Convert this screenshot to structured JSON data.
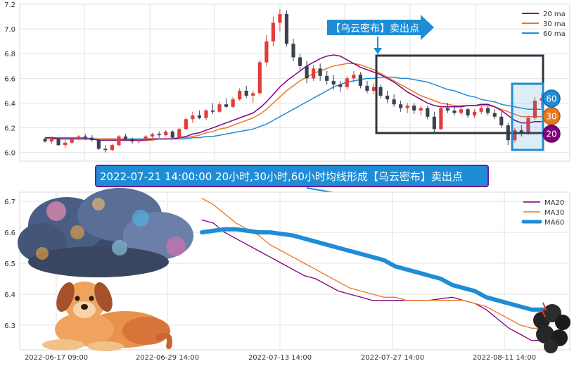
{
  "colors": {
    "ma20": "#800080",
    "ma30": "#e87722",
    "ma60": "#1f8dd6",
    "up": "#e23b3b",
    "down": "#3a4252",
    "box": "#2f3640",
    "blue_box": "#1f8dd6",
    "banner_bg": "#1f8dd6",
    "banner_border": "#6a1b9a"
  },
  "callout": {
    "text": "【乌云密布】卖出点"
  },
  "banner": {
    "text": "2022-07-21 14:00:00 20小时,30小时,60小时均线形成【乌云密布】卖出点"
  },
  "badges": {
    "ma60": "60",
    "ma30": "30",
    "ma20": "20"
  },
  "images": {
    "cloud": "storm-cloud-illustration",
    "dog": "dog-illustration",
    "small_cloud": "dark-cloud-illustration"
  },
  "chart_data": [
    {
      "type": "candlestick",
      "title": "",
      "ylim": [
        5.93,
        7.2
      ],
      "yticks": [
        "6.0",
        "6.2",
        "6.4",
        "6.6",
        "6.8",
        "7.0",
        "7.2"
      ],
      "ytick_values": [
        6.0,
        6.2,
        6.4,
        6.6,
        6.8,
        7.0,
        7.2
      ],
      "grid": true,
      "legend": {
        "position": "top-right",
        "entries": [
          "20 ma",
          "30 ma",
          "60 ma"
        ]
      },
      "ohlc": [
        [
          6.11,
          6.12,
          6.08,
          6.09
        ],
        [
          6.09,
          6.13,
          6.07,
          6.11
        ],
        [
          6.11,
          6.12,
          6.05,
          6.06
        ],
        [
          6.06,
          6.1,
          6.04,
          6.08
        ],
        [
          6.08,
          6.12,
          6.07,
          6.11
        ],
        [
          6.11,
          6.14,
          6.1,
          6.13
        ],
        [
          6.13,
          6.15,
          6.1,
          6.12
        ],
        [
          6.12,
          6.14,
          6.09,
          6.1
        ],
        [
          6.1,
          6.11,
          6.02,
          6.03
        ],
        [
          6.03,
          6.06,
          6.0,
          6.02
        ],
        [
          6.02,
          6.07,
          6.01,
          6.06
        ],
        [
          6.06,
          6.14,
          6.05,
          6.13
        ],
        [
          6.13,
          6.15,
          6.1,
          6.11
        ],
        [
          6.11,
          6.12,
          6.07,
          6.09
        ],
        [
          6.09,
          6.11,
          6.07,
          6.1
        ],
        [
          6.1,
          6.14,
          6.09,
          6.13
        ],
        [
          6.13,
          6.16,
          6.11,
          6.15
        ],
        [
          6.15,
          6.17,
          6.12,
          6.14
        ],
        [
          6.14,
          6.18,
          6.13,
          6.17
        ],
        [
          6.17,
          6.18,
          6.11,
          6.12
        ],
        [
          6.12,
          6.2,
          6.11,
          6.19
        ],
        [
          6.19,
          6.28,
          6.18,
          6.27
        ],
        [
          6.27,
          6.33,
          6.24,
          6.3
        ],
        [
          6.3,
          6.34,
          6.27,
          6.28
        ],
        [
          6.28,
          6.35,
          6.26,
          6.34
        ],
        [
          6.34,
          6.4,
          6.31,
          6.33
        ],
        [
          6.33,
          6.41,
          6.32,
          6.39
        ],
        [
          6.39,
          6.44,
          6.36,
          6.37
        ],
        [
          6.37,
          6.45,
          6.36,
          6.43
        ],
        [
          6.43,
          6.52,
          6.42,
          6.5
        ],
        [
          6.5,
          6.54,
          6.44,
          6.46
        ],
        [
          6.46,
          6.5,
          6.4,
          6.48
        ],
        [
          6.48,
          6.75,
          6.47,
          6.73
        ],
        [
          6.73,
          6.95,
          6.7,
          6.9
        ],
        [
          6.9,
          7.1,
          6.86,
          7.05
        ],
        [
          7.05,
          7.16,
          6.98,
          7.12
        ],
        [
          7.12,
          7.15,
          6.86,
          6.88
        ],
        [
          6.88,
          6.92,
          6.74,
          6.77
        ],
        [
          6.77,
          6.8,
          6.66,
          6.7
        ],
        [
          6.7,
          6.74,
          6.56,
          6.6
        ],
        [
          6.6,
          6.71,
          6.58,
          6.68
        ],
        [
          6.68,
          6.72,
          6.58,
          6.62
        ],
        [
          6.62,
          6.66,
          6.55,
          6.58
        ],
        [
          6.58,
          6.63,
          6.51,
          6.55
        ],
        [
          6.55,
          6.58,
          6.49,
          6.53
        ],
        [
          6.53,
          6.62,
          6.51,
          6.6
        ],
        [
          6.6,
          6.66,
          6.57,
          6.63
        ],
        [
          6.63,
          6.65,
          6.52,
          6.54
        ],
        [
          6.54,
          6.58,
          6.48,
          6.5
        ],
        [
          6.5,
          6.56,
          6.47,
          6.53
        ],
        [
          6.53,
          6.55,
          6.44,
          6.46
        ],
        [
          6.46,
          6.5,
          6.4,
          6.43
        ],
        [
          6.43,
          6.47,
          6.37,
          6.39
        ],
        [
          6.39,
          6.42,
          6.33,
          6.36
        ],
        [
          6.36,
          6.4,
          6.32,
          6.38
        ],
        [
          6.38,
          6.4,
          6.31,
          6.34
        ],
        [
          6.34,
          6.38,
          6.3,
          6.36
        ],
        [
          6.36,
          6.38,
          6.27,
          6.29
        ],
        [
          6.29,
          6.33,
          6.16,
          6.19
        ],
        [
          6.19,
          6.38,
          6.18,
          6.36
        ],
        [
          6.36,
          6.4,
          6.32,
          6.34
        ],
        [
          6.34,
          6.38,
          6.3,
          6.32
        ],
        [
          6.32,
          6.37,
          6.3,
          6.35
        ],
        [
          6.35,
          6.36,
          6.28,
          6.3
        ],
        [
          6.3,
          6.35,
          6.28,
          6.33
        ],
        [
          6.33,
          6.38,
          6.31,
          6.36
        ],
        [
          6.36,
          6.38,
          6.3,
          6.32
        ],
        [
          6.32,
          6.35,
          6.27,
          6.29
        ],
        [
          6.29,
          6.33,
          6.2,
          6.22
        ],
        [
          6.22,
          6.24,
          6.06,
          6.1
        ],
        [
          6.1,
          6.2,
          6.08,
          6.18
        ],
        [
          6.18,
          6.22,
          6.13,
          6.15
        ],
        [
          6.15,
          6.3,
          6.14,
          6.28
        ],
        [
          6.28,
          6.45,
          6.26,
          6.42
        ],
        [
          6.42,
          6.48,
          6.36,
          6.44
        ]
      ],
      "ma20": [
        6.12,
        6.12,
        6.11,
        6.11,
        6.11,
        6.11,
        6.11,
        6.11,
        6.1,
        6.1,
        6.1,
        6.1,
        6.1,
        6.1,
        6.1,
        6.1,
        6.11,
        6.11,
        6.11,
        6.11,
        6.12,
        6.13,
        6.15,
        6.16,
        6.18,
        6.2,
        6.22,
        6.24,
        6.26,
        6.28,
        6.3,
        6.32,
        6.36,
        6.41,
        6.47,
        6.53,
        6.58,
        6.62,
        6.66,
        6.7,
        6.73,
        6.76,
        6.78,
        6.79,
        6.78,
        6.75,
        6.72,
        6.69,
        6.67,
        6.65,
        6.63,
        6.6,
        6.57,
        6.53,
        6.49,
        6.46,
        6.43,
        6.4,
        6.38,
        6.37,
        6.37,
        6.37,
        6.37,
        6.38,
        6.38,
        6.39,
        6.39,
        6.37,
        6.34,
        6.3,
        6.26,
        6.24,
        6.24,
        6.25,
        6.25
      ],
      "ma30": [
        6.11,
        6.11,
        6.11,
        6.11,
        6.11,
        6.11,
        6.11,
        6.11,
        6.11,
        6.11,
        6.11,
        6.11,
        6.1,
        6.1,
        6.1,
        6.1,
        6.1,
        6.11,
        6.11,
        6.11,
        6.12,
        6.12,
        6.13,
        6.14,
        6.16,
        6.17,
        6.19,
        6.2,
        6.22,
        6.24,
        6.26,
        6.28,
        6.31,
        6.35,
        6.4,
        6.45,
        6.5,
        6.54,
        6.58,
        6.61,
        6.64,
        6.66,
        6.68,
        6.7,
        6.71,
        6.72,
        6.72,
        6.71,
        6.69,
        6.67,
        6.64,
        6.61,
        6.58,
        6.55,
        6.52,
        6.49,
        6.46,
        6.44,
        6.42,
        6.4,
        6.39,
        6.38,
        6.38,
        6.38,
        6.38,
        6.38,
        6.38,
        6.37,
        6.35,
        6.33,
        6.31,
        6.29,
        6.29,
        6.29,
        6.29
      ],
      "ma60": [
        6.12,
        6.12,
        6.12,
        6.12,
        6.12,
        6.12,
        6.12,
        6.11,
        6.11,
        6.11,
        6.11,
        6.11,
        6.11,
        6.11,
        6.11,
        6.11,
        6.11,
        6.11,
        6.11,
        6.11,
        6.11,
        6.11,
        6.12,
        6.12,
        6.13,
        6.13,
        6.14,
        6.15,
        6.16,
        6.17,
        6.18,
        6.19,
        6.21,
        6.23,
        6.26,
        6.29,
        6.32,
        6.35,
        6.38,
        6.41,
        6.44,
        6.47,
        6.5,
        6.53,
        6.55,
        6.57,
        6.58,
        6.59,
        6.6,
        6.6,
        6.61,
        6.61,
        6.61,
        6.6,
        6.6,
        6.59,
        6.58,
        6.57,
        6.55,
        6.53,
        6.51,
        6.5,
        6.48,
        6.46,
        6.45,
        6.43,
        6.42,
        6.41,
        6.39,
        6.38,
        6.37,
        6.36,
        6.35,
        6.35,
        6.35
      ]
    },
    {
      "type": "line",
      "title": "",
      "ylim": [
        6.22,
        6.73
      ],
      "yticks": [
        "6.3",
        "6.4",
        "6.5",
        "6.6",
        "6.7"
      ],
      "ytick_values": [
        6.3,
        6.4,
        6.5,
        6.6,
        6.7
      ],
      "xticks": [
        "2022-06-17 09:00",
        "2022-06-29 14:00",
        "2022-07-13 14:00",
        "2022-07-27 14:00",
        "2022-08-11 14:00"
      ],
      "grid": true,
      "legend": {
        "position": "top-right",
        "entries": [
          "MA20",
          "MA30",
          "MA60"
        ]
      },
      "series": [
        {
          "name": "MA20",
          "values": [
            6.64,
            6.63,
            6.6,
            6.58,
            6.56,
            6.54,
            6.52,
            6.5,
            6.48,
            6.46,
            6.45,
            6.43,
            6.41,
            6.4,
            6.39,
            6.38,
            6.38,
            6.38,
            6.38,
            6.38,
            6.38,
            6.385,
            6.39,
            6.38,
            6.37,
            6.35,
            6.32,
            6.29,
            6.27,
            6.25,
            6.25
          ]
        },
        {
          "name": "MA30",
          "values": [
            6.71,
            6.69,
            6.66,
            6.63,
            6.61,
            6.59,
            6.56,
            6.54,
            6.52,
            6.5,
            6.48,
            6.46,
            6.44,
            6.42,
            6.41,
            6.4,
            6.39,
            6.39,
            6.38,
            6.38,
            6.38,
            6.38,
            6.38,
            6.38,
            6.37,
            6.36,
            6.34,
            6.32,
            6.3,
            6.29,
            6.29
          ]
        },
        {
          "name": "MA60",
          "values": [
            6.6,
            6.605,
            6.61,
            6.61,
            6.605,
            6.6,
            6.6,
            6.595,
            6.59,
            6.58,
            6.57,
            6.56,
            6.55,
            6.54,
            6.53,
            6.52,
            6.51,
            6.49,
            6.48,
            6.47,
            6.46,
            6.45,
            6.43,
            6.42,
            6.41,
            6.39,
            6.38,
            6.37,
            6.36,
            6.35,
            6.35
          ]
        }
      ]
    }
  ]
}
